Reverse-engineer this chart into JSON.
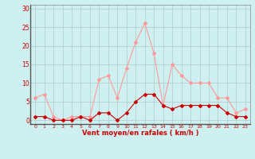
{
  "hours": [
    0,
    1,
    2,
    3,
    4,
    5,
    6,
    7,
    8,
    9,
    10,
    11,
    12,
    13,
    14,
    15,
    16,
    17,
    18,
    19,
    20,
    21,
    22,
    23
  ],
  "wind_avg": [
    1,
    1,
    0,
    0,
    0,
    1,
    0,
    2,
    2,
    0,
    2,
    5,
    7,
    7,
    4,
    3,
    4,
    4,
    4,
    4,
    4,
    2,
    1,
    1
  ],
  "wind_gust": [
    6,
    7,
    1,
    0,
    1,
    1,
    1,
    11,
    12,
    6,
    14,
    21,
    26,
    18,
    4,
    15,
    12,
    10,
    10,
    10,
    6,
    6,
    2,
    3
  ],
  "bg_color": "#cff0f0",
  "grid_color": "#b0c8c8",
  "line_avg_color": "#cc0000",
  "line_gust_color": "#ff9999",
  "xlabel": "Vent moyen/en rafales ( km/h )",
  "xlabel_color": "#cc0000",
  "ylabel_color": "#cc0000",
  "yticks": [
    0,
    5,
    10,
    15,
    20,
    25,
    30
  ],
  "ylim": [
    -1,
    31
  ],
  "xlim": [
    -0.5,
    23.5
  ]
}
